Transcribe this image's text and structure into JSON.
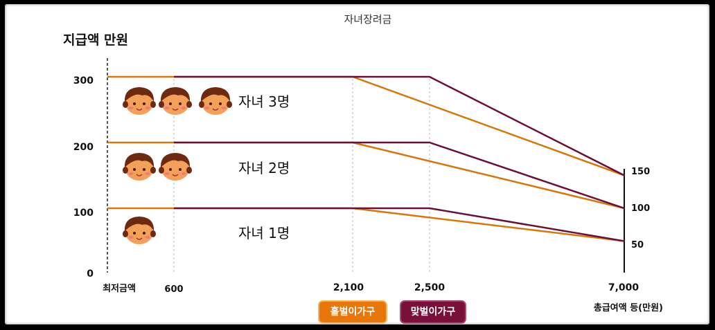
{
  "chart_data": {
    "type": "line",
    "title": "자녀장려금",
    "ylabel": "지급액 만원",
    "xlabel": "총급여액 등(만원)",
    "x_tick_labels": [
      "최저금액",
      "600",
      "2,100",
      "2,500",
      "7,000"
    ],
    "y_ticks": [
      "0",
      "100",
      "200",
      "300"
    ],
    "right_tick_labels": [
      "150",
      "100",
      "50"
    ],
    "ylim": [
      0,
      350
    ],
    "annotations": [
      "자녀 3명",
      "자녀 2명",
      "자녀 1명"
    ],
    "series": [
      {
        "name": "홑벌이가구",
        "color": "#d97606",
        "lines": [
          {
            "x": [
              0,
              2100,
              7000
            ],
            "y": [
              300,
              300,
              150
            ]
          },
          {
            "x": [
              0,
              2100,
              7000
            ],
            "y": [
              200,
              200,
              100
            ]
          },
          {
            "x": [
              0,
              2100,
              7000
            ],
            "y": [
              100,
              100,
              50
            ]
          }
        ]
      },
      {
        "name": "맞벌이가구",
        "color": "#6b0f3a",
        "lines": [
          {
            "x": [
              600,
              2500,
              7000
            ],
            "y": [
              300,
              300,
              150
            ]
          },
          {
            "x": [
              600,
              2500,
              7000
            ],
            "y": [
              200,
              200,
              100
            ]
          },
          {
            "x": [
              600,
              2500,
              7000
            ],
            "y": [
              100,
              100,
              50
            ]
          }
        ]
      }
    ],
    "legend": [
      {
        "label": "홑벌이가구",
        "color": "#e8760a"
      },
      {
        "label": "맞벌이가구",
        "color": "#7a0f3c"
      }
    ],
    "icon": "child-face-icon"
  }
}
